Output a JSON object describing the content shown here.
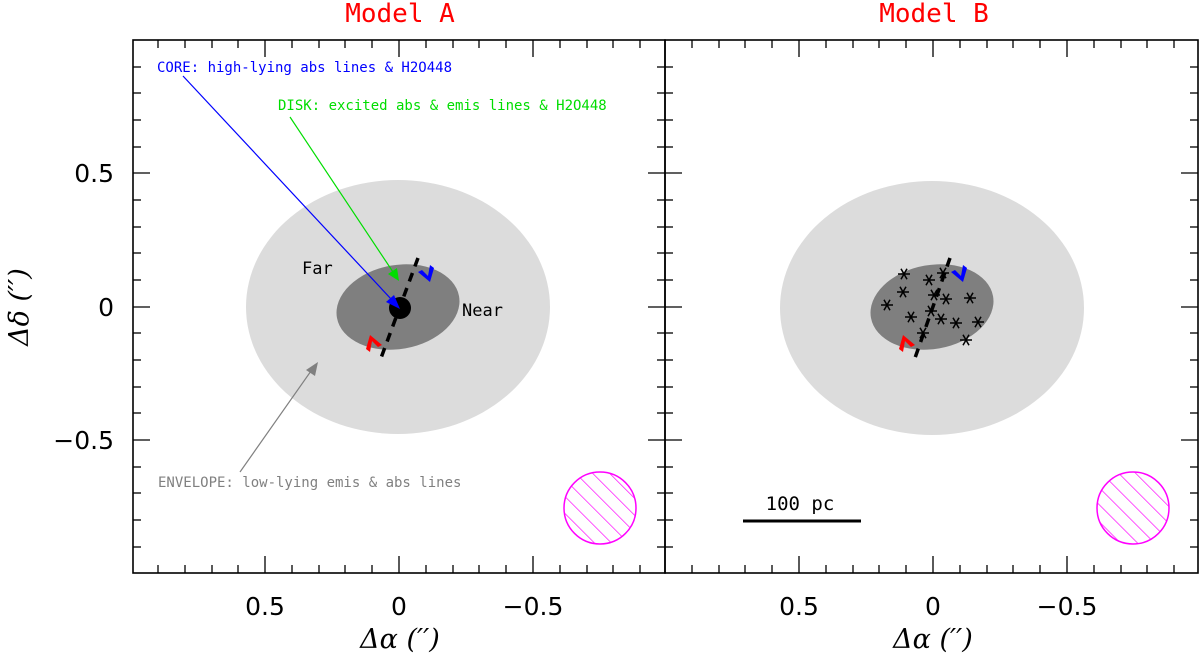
{
  "panels": [
    {
      "title": "Model A",
      "annotations": {
        "core": "CORE: high-lying abs lines & H2O448",
        "disk": "DISK: excited abs & emis lines & H2O448",
        "envelope": "ENVELOPE: low-lying emis & abs lines",
        "far": "Far",
        "near": "Near"
      },
      "xlabel": "Δα  (′′)",
      "ylabel": "Δδ  (′′)",
      "xticks": [
        "0.5",
        "0",
        "−0.5"
      ],
      "yticks": [
        "0.5",
        "0",
        "−0.5"
      ]
    },
    {
      "title": "Model B",
      "scalebar": "100 pc",
      "xlabel": "Δα  (′′)",
      "xticks": [
        "0.5",
        "0",
        "−0.5"
      ]
    }
  ],
  "colors": {
    "title": "#ff0000",
    "core": "#0000ff",
    "disk": "#00dd00",
    "envelope": "#808080",
    "envelope_fill": "#dcdcdc",
    "disk_fill": "#7f7f7f",
    "beam": "#ff00ff"
  }
}
